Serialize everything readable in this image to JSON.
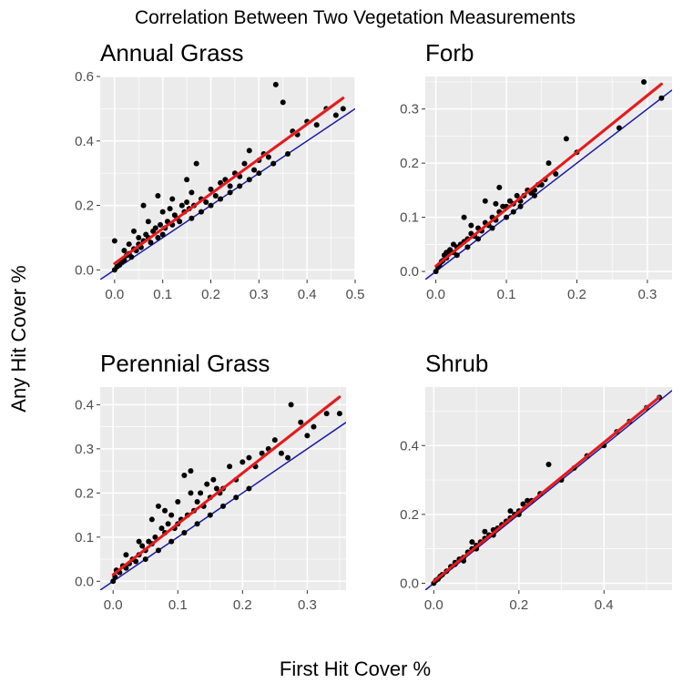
{
  "figure": {
    "title": "Correlation Between Two Vegetation Measurements",
    "xlabel": "First Hit Cover %",
    "ylabel": "Any Hit Cover %"
  },
  "colors": {
    "panel_bg": "#ebebeb",
    "grid": "#ffffff",
    "points": "#000000",
    "identity_line": "#1a1aa6",
    "fit_line": "#e8191b",
    "ci_band": "#bfbfbf",
    "tick_text": "#4d4d4d"
  },
  "chart_data": [
    {
      "type": "scatter",
      "title": "Annual Grass",
      "xlim": [
        -0.03,
        0.5
      ],
      "ylim": [
        -0.03,
        0.6
      ],
      "xticks": [
        0.0,
        0.1,
        0.2,
        0.3,
        0.4,
        0.5
      ],
      "yticks": [
        0.0,
        0.2,
        0.4,
        0.6
      ],
      "xtick_labels": [
        "0.0",
        "0.1",
        "0.2",
        "0.3",
        "0.4",
        "0.5"
      ],
      "ytick_labels": [
        "0.0",
        "0.2",
        "0.4",
        "0.6"
      ],
      "fit_line": {
        "intercept": 0.02,
        "slope": 1.08
      },
      "identity_line": {
        "intercept": 0,
        "slope": 1
      },
      "points": [
        [
          0.0,
          0.0
        ],
        [
          0.005,
          0.01
        ],
        [
          0.01,
          0.015
        ],
        [
          0.015,
          0.025
        ],
        [
          0.0,
          0.09
        ],
        [
          0.02,
          0.03
        ],
        [
          0.025,
          0.045
        ],
        [
          0.03,
          0.05
        ],
        [
          0.035,
          0.04
        ],
        [
          0.04,
          0.065
        ],
        [
          0.045,
          0.06
        ],
        [
          0.05,
          0.08
        ],
        [
          0.055,
          0.07
        ],
        [
          0.06,
          0.09
        ],
        [
          0.065,
          0.11
        ],
        [
          0.07,
          0.1
        ],
        [
          0.075,
          0.085
        ],
        [
          0.08,
          0.12
        ],
        [
          0.085,
          0.13
        ],
        [
          0.09,
          0.1
        ],
        [
          0.095,
          0.14
        ],
        [
          0.1,
          0.11
        ],
        [
          0.105,
          0.13
        ],
        [
          0.11,
          0.15
        ],
        [
          0.115,
          0.19
        ],
        [
          0.12,
          0.14
        ],
        [
          0.125,
          0.17
        ],
        [
          0.13,
          0.16
        ],
        [
          0.135,
          0.15
        ],
        [
          0.14,
          0.2
        ],
        [
          0.145,
          0.18
        ],
        [
          0.15,
          0.21
        ],
        [
          0.155,
          0.19
        ],
        [
          0.16,
          0.24
        ],
        [
          0.165,
          0.2
        ],
        [
          0.17,
          0.33
        ],
        [
          0.18,
          0.22
        ],
        [
          0.19,
          0.21
        ],
        [
          0.2,
          0.25
        ],
        [
          0.21,
          0.23
        ],
        [
          0.22,
          0.27
        ],
        [
          0.23,
          0.28
        ],
        [
          0.24,
          0.26
        ],
        [
          0.25,
          0.3
        ],
        [
          0.26,
          0.29
        ],
        [
          0.27,
          0.33
        ],
        [
          0.28,
          0.37
        ],
        [
          0.29,
          0.31
        ],
        [
          0.3,
          0.34
        ],
        [
          0.31,
          0.36
        ],
        [
          0.32,
          0.35
        ],
        [
          0.335,
          0.575
        ],
        [
          0.35,
          0.52
        ],
        [
          0.37,
          0.43
        ],
        [
          0.38,
          0.42
        ],
        [
          0.4,
          0.46
        ],
        [
          0.42,
          0.45
        ],
        [
          0.44,
          0.5
        ],
        [
          0.46,
          0.48
        ],
        [
          0.475,
          0.5
        ],
        [
          0.06,
          0.2
        ],
        [
          0.07,
          0.15
        ],
        [
          0.09,
          0.23
        ],
        [
          0.1,
          0.18
        ],
        [
          0.15,
          0.28
        ],
        [
          0.12,
          0.22
        ],
        [
          0.04,
          0.12
        ],
        [
          0.05,
          0.1
        ],
        [
          0.02,
          0.06
        ],
        [
          0.03,
          0.08
        ],
        [
          0.16,
          0.16
        ],
        [
          0.18,
          0.18
        ],
        [
          0.2,
          0.2
        ],
        [
          0.22,
          0.22
        ],
        [
          0.24,
          0.24
        ],
        [
          0.26,
          0.26
        ],
        [
          0.28,
          0.28
        ],
        [
          0.3,
          0.3
        ],
        [
          0.33,
          0.33
        ],
        [
          0.36,
          0.36
        ]
      ]
    },
    {
      "type": "scatter",
      "title": "Forb",
      "xlim": [
        -0.015,
        0.335
      ],
      "ylim": [
        -0.015,
        0.36
      ],
      "xticks": [
        0.0,
        0.1,
        0.2,
        0.3
      ],
      "yticks": [
        0.0,
        0.1,
        0.2,
        0.3
      ],
      "xtick_labels": [
        "0.0",
        "0.1",
        "0.2",
        "0.3"
      ],
      "ytick_labels": [
        "0.0",
        "0.1",
        "0.2",
        "0.3"
      ],
      "fit_line": {
        "intercept": 0.01,
        "slope": 1.05
      },
      "identity_line": {
        "intercept": 0,
        "slope": 1
      },
      "points": [
        [
          0.0,
          0.0
        ],
        [
          0.003,
          0.008
        ],
        [
          0.005,
          0.012
        ],
        [
          0.008,
          0.018
        ],
        [
          0.01,
          0.02
        ],
        [
          0.012,
          0.03
        ],
        [
          0.015,
          0.025
        ],
        [
          0.018,
          0.032
        ],
        [
          0.02,
          0.04
        ],
        [
          0.025,
          0.035
        ],
        [
          0.03,
          0.045
        ],
        [
          0.035,
          0.05
        ],
        [
          0.04,
          0.055
        ],
        [
          0.045,
          0.06
        ],
        [
          0.05,
          0.07
        ],
        [
          0.055,
          0.065
        ],
        [
          0.06,
          0.08
        ],
        [
          0.065,
          0.075
        ],
        [
          0.07,
          0.09
        ],
        [
          0.075,
          0.085
        ],
        [
          0.08,
          0.1
        ],
        [
          0.085,
          0.095
        ],
        [
          0.09,
          0.11
        ],
        [
          0.095,
          0.12
        ],
        [
          0.1,
          0.12
        ],
        [
          0.105,
          0.13
        ],
        [
          0.11,
          0.125
        ],
        [
          0.115,
          0.14
        ],
        [
          0.12,
          0.13
        ],
        [
          0.125,
          0.14
        ],
        [
          0.13,
          0.15
        ],
        [
          0.135,
          0.145
        ],
        [
          0.14,
          0.15
        ],
        [
          0.145,
          0.16
        ],
        [
          0.15,
          0.16
        ],
        [
          0.155,
          0.17
        ],
        [
          0.16,
          0.2
        ],
        [
          0.17,
          0.18
        ],
        [
          0.185,
          0.245
        ],
        [
          0.2,
          0.22
        ],
        [
          0.26,
          0.265
        ],
        [
          0.295,
          0.35
        ],
        [
          0.32,
          0.32
        ],
        [
          0.09,
          0.155
        ],
        [
          0.07,
          0.13
        ],
        [
          0.085,
          0.125
        ],
        [
          0.05,
          0.085
        ],
        [
          0.04,
          0.1
        ],
        [
          0.025,
          0.05
        ],
        [
          0.015,
          0.035
        ],
        [
          0.06,
          0.06
        ],
        [
          0.08,
          0.08
        ],
        [
          0.1,
          0.1
        ],
        [
          0.12,
          0.12
        ],
        [
          0.14,
          0.14
        ],
        [
          0.03,
          0.03
        ],
        [
          0.045,
          0.045
        ],
        [
          0.11,
          0.11
        ]
      ]
    },
    {
      "type": "scatter",
      "title": "Perennial Grass",
      "xlim": [
        -0.02,
        0.36
      ],
      "ylim": [
        -0.02,
        0.44
      ],
      "xticks": [
        0.0,
        0.1,
        0.2,
        0.3
      ],
      "yticks": [
        0.0,
        0.1,
        0.2,
        0.3,
        0.4
      ],
      "xtick_labels": [
        "0.0",
        "0.1",
        "0.2",
        "0.3"
      ],
      "ytick_labels": [
        "0.0",
        "0.1",
        "0.2",
        "0.3",
        "0.4"
      ],
      "fit_line": {
        "intercept": 0.015,
        "slope": 1.15
      },
      "identity_line": {
        "intercept": 0,
        "slope": 1
      },
      "points": [
        [
          0.0,
          0.0
        ],
        [
          0.003,
          0.01
        ],
        [
          0.005,
          0.025
        ],
        [
          0.01,
          0.02
        ],
        [
          0.015,
          0.035
        ],
        [
          0.02,
          0.03
        ],
        [
          0.025,
          0.04
        ],
        [
          0.03,
          0.05
        ],
        [
          0.035,
          0.045
        ],
        [
          0.04,
          0.06
        ],
        [
          0.045,
          0.08
        ],
        [
          0.05,
          0.07
        ],
        [
          0.055,
          0.09
        ],
        [
          0.06,
          0.085
        ],
        [
          0.065,
          0.1
        ],
        [
          0.07,
          0.17
        ],
        [
          0.075,
          0.12
        ],
        [
          0.08,
          0.11
        ],
        [
          0.085,
          0.13
        ],
        [
          0.09,
          0.15
        ],
        [
          0.095,
          0.12
        ],
        [
          0.1,
          0.13
        ],
        [
          0.105,
          0.14
        ],
        [
          0.11,
          0.24
        ],
        [
          0.115,
          0.15
        ],
        [
          0.12,
          0.25
        ],
        [
          0.125,
          0.16
        ],
        [
          0.13,
          0.18
        ],
        [
          0.135,
          0.2
        ],
        [
          0.14,
          0.17
        ],
        [
          0.145,
          0.22
        ],
        [
          0.15,
          0.19
        ],
        [
          0.155,
          0.23
        ],
        [
          0.16,
          0.21
        ],
        [
          0.165,
          0.2
        ],
        [
          0.17,
          0.21
        ],
        [
          0.18,
          0.26
        ],
        [
          0.19,
          0.23
        ],
        [
          0.2,
          0.27
        ],
        [
          0.21,
          0.28
        ],
        [
          0.22,
          0.26
        ],
        [
          0.23,
          0.29
        ],
        [
          0.24,
          0.3
        ],
        [
          0.25,
          0.32
        ],
        [
          0.26,
          0.29
        ],
        [
          0.27,
          0.28
        ],
        [
          0.275,
          0.4
        ],
        [
          0.29,
          0.36
        ],
        [
          0.3,
          0.33
        ],
        [
          0.31,
          0.35
        ],
        [
          0.33,
          0.38
        ],
        [
          0.35,
          0.38
        ],
        [
          0.06,
          0.14
        ],
        [
          0.08,
          0.16
        ],
        [
          0.1,
          0.18
        ],
        [
          0.12,
          0.2
        ],
        [
          0.04,
          0.09
        ],
        [
          0.02,
          0.06
        ],
        [
          0.15,
          0.15
        ],
        [
          0.17,
          0.17
        ],
        [
          0.19,
          0.19
        ],
        [
          0.21,
          0.21
        ],
        [
          0.13,
          0.13
        ],
        [
          0.11,
          0.11
        ],
        [
          0.09,
          0.09
        ],
        [
          0.07,
          0.07
        ],
        [
          0.05,
          0.05
        ]
      ]
    },
    {
      "type": "scatter",
      "title": "Shrub",
      "xlim": [
        -0.02,
        0.56
      ],
      "ylim": [
        -0.02,
        0.57
      ],
      "xticks": [
        0.0,
        0.2,
        0.4
      ],
      "yticks": [
        0.0,
        0.2,
        0.4
      ],
      "xtick_labels": [
        "0.0",
        "0.2",
        "0.4"
      ],
      "ytick_labels": [
        "0.0",
        "0.2",
        "0.4"
      ],
      "fit_line": {
        "intercept": 0.005,
        "slope": 1.01
      },
      "identity_line": {
        "intercept": 0,
        "slope": 1
      },
      "points": [
        [
          0.0,
          0.0
        ],
        [
          0.005,
          0.008
        ],
        [
          0.01,
          0.012
        ],
        [
          0.015,
          0.02
        ],
        [
          0.02,
          0.025
        ],
        [
          0.03,
          0.035
        ],
        [
          0.04,
          0.048
        ],
        [
          0.05,
          0.06
        ],
        [
          0.06,
          0.07
        ],
        [
          0.07,
          0.075
        ],
        [
          0.08,
          0.09
        ],
        [
          0.09,
          0.1
        ],
        [
          0.1,
          0.11
        ],
        [
          0.11,
          0.12
        ],
        [
          0.12,
          0.13
        ],
        [
          0.13,
          0.14
        ],
        [
          0.14,
          0.155
        ],
        [
          0.15,
          0.16
        ],
        [
          0.16,
          0.17
        ],
        [
          0.17,
          0.18
        ],
        [
          0.18,
          0.19
        ],
        [
          0.19,
          0.2
        ],
        [
          0.2,
          0.21
        ],
        [
          0.21,
          0.23
        ],
        [
          0.22,
          0.24
        ],
        [
          0.23,
          0.24
        ],
        [
          0.25,
          0.26
        ],
        [
          0.27,
          0.345
        ],
        [
          0.3,
          0.3
        ],
        [
          0.33,
          0.335
        ],
        [
          0.36,
          0.37
        ],
        [
          0.4,
          0.4
        ],
        [
          0.43,
          0.44
        ],
        [
          0.46,
          0.47
        ],
        [
          0.5,
          0.51
        ],
        [
          0.53,
          0.54
        ],
        [
          0.09,
          0.12
        ],
        [
          0.12,
          0.15
        ],
        [
          0.18,
          0.21
        ],
        [
          0.05,
          0.055
        ],
        [
          0.07,
          0.065
        ],
        [
          0.1,
          0.1
        ],
        [
          0.14,
          0.14
        ],
        [
          0.2,
          0.2
        ]
      ]
    }
  ]
}
